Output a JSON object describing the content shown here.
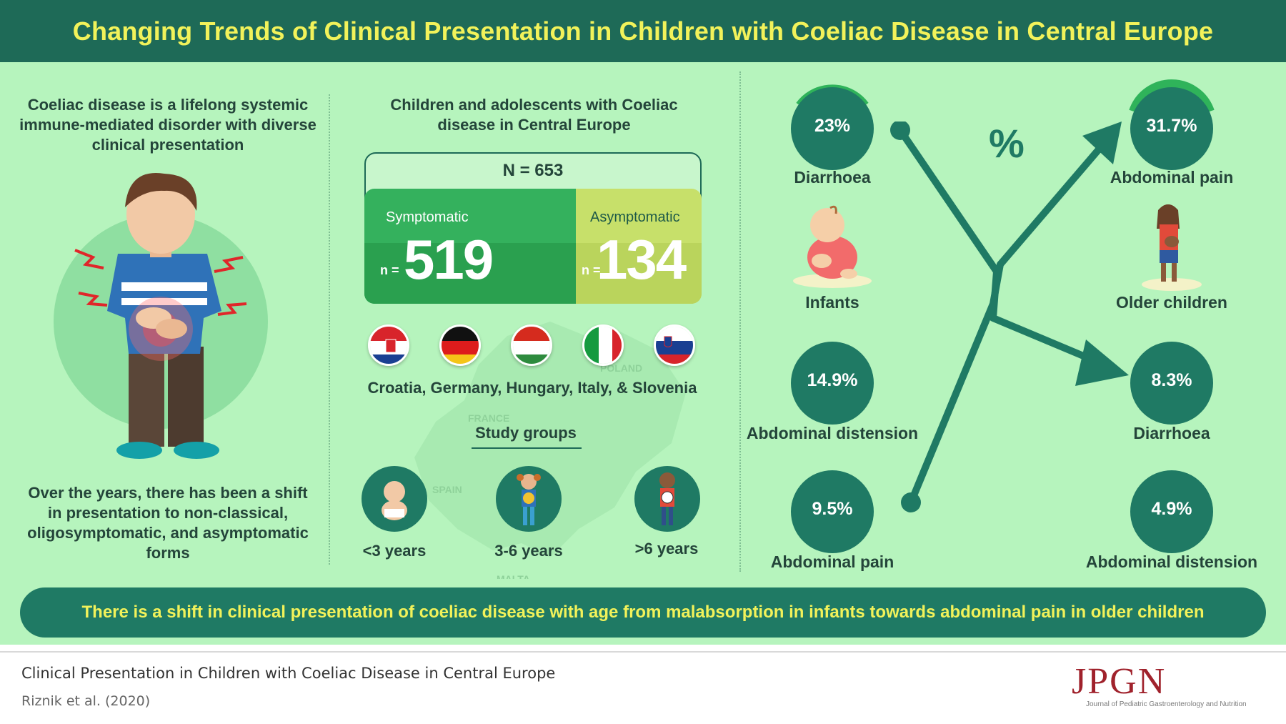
{
  "header": {
    "title": "Changing Trends of Clinical Presentation in Children with Coeliac Disease in Central Europe"
  },
  "left": {
    "intro": "Coeliac disease is a lifelong systemic immune-mediated disorder with diverse clinical presentation",
    "outro": "Over the years, there has been a shift in presentation to non-classical, oligosymptomatic, and asymptomatic forms"
  },
  "middle": {
    "heading": "Children and adolescents with Coeliac disease in Central Europe",
    "total": "N = 653",
    "symptomatic": {
      "label": "Symptomatic",
      "prefix": "n =",
      "value": "519"
    },
    "asymptomatic": {
      "label": "Asymptomatic",
      "prefix": "n =",
      "value": "134"
    },
    "countries": "Croatia, Germany, Hungary, Italy, & Slovenia",
    "study_groups_title": "Study groups",
    "groups": [
      {
        "label": "<3 years"
      },
      {
        "label": "3-6 years"
      },
      {
        "label": ">6 years"
      }
    ],
    "map_labels": [
      "POLAND",
      "FRANCE",
      "SPAIN",
      "MALTA"
    ]
  },
  "right": {
    "percent_symbol": "%",
    "infants": {
      "label": "Infants",
      "items": [
        {
          "value": "23%",
          "label": "Diarrhoea"
        },
        {
          "value": "14.9%",
          "label": "Abdominal distension"
        },
        {
          "value": "9.5%",
          "label": "Abdominal pain"
        }
      ]
    },
    "older": {
      "label": "Older children",
      "items": [
        {
          "value": "31.7%",
          "label": "Abdominal pain"
        },
        {
          "value": "8.3%",
          "label": "Diarrhoea"
        },
        {
          "value": "4.9%",
          "label": "Abdominal distension"
        }
      ]
    }
  },
  "banner": "There is a shift in clinical presentation of coeliac disease with age from malabsorption in infants towards abdominal pain in older children",
  "footer": {
    "title": "Clinical Presentation in Children with Coeliac Disease in Central Europe",
    "citation": "Riznik et al. (2020)",
    "logo": "JPGN",
    "logo_sub": "Journal of Pediatric Gastroenterology and Nutrition"
  },
  "colors": {
    "header": "#1e6a57",
    "panel": "#b6f4bd",
    "accent_yellow": "#f2f25a",
    "teal": "#1f7a64",
    "symptomatic": "#34b15d",
    "asymptomatic": "#c7e06a"
  }
}
